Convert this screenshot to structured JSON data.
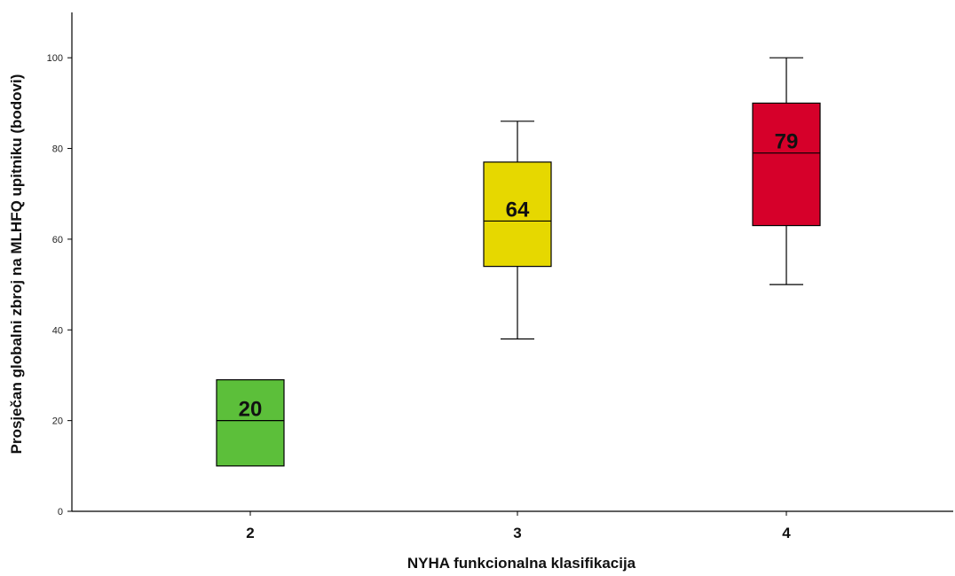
{
  "chart_data": {
    "type": "boxplot",
    "xlabel": "NYHA funkcionalna klasifikacija",
    "ylabel": "Prosječan globalni zbroj na MLHFQ upitniku (bodovi)",
    "ylim": [
      0,
      110
    ],
    "yticks": [
      0,
      20,
      40,
      60,
      80,
      100
    ],
    "grid": false,
    "categories": [
      "2",
      "3",
      "4"
    ],
    "boxes": [
      {
        "category": "2",
        "min": 10,
        "q1": 10,
        "median": 20,
        "q3": 29,
        "max": 29,
        "label": "20",
        "color": "#5cbf3a"
      },
      {
        "category": "3",
        "min": 38,
        "q1": 54,
        "median": 64,
        "q3": 77,
        "max": 86,
        "label": "64",
        "color": "#e6d800"
      },
      {
        "category": "4",
        "min": 50,
        "q1": 63,
        "median": 79,
        "q3": 90,
        "max": 100,
        "label": "79",
        "color": "#d6002a"
      }
    ]
  }
}
